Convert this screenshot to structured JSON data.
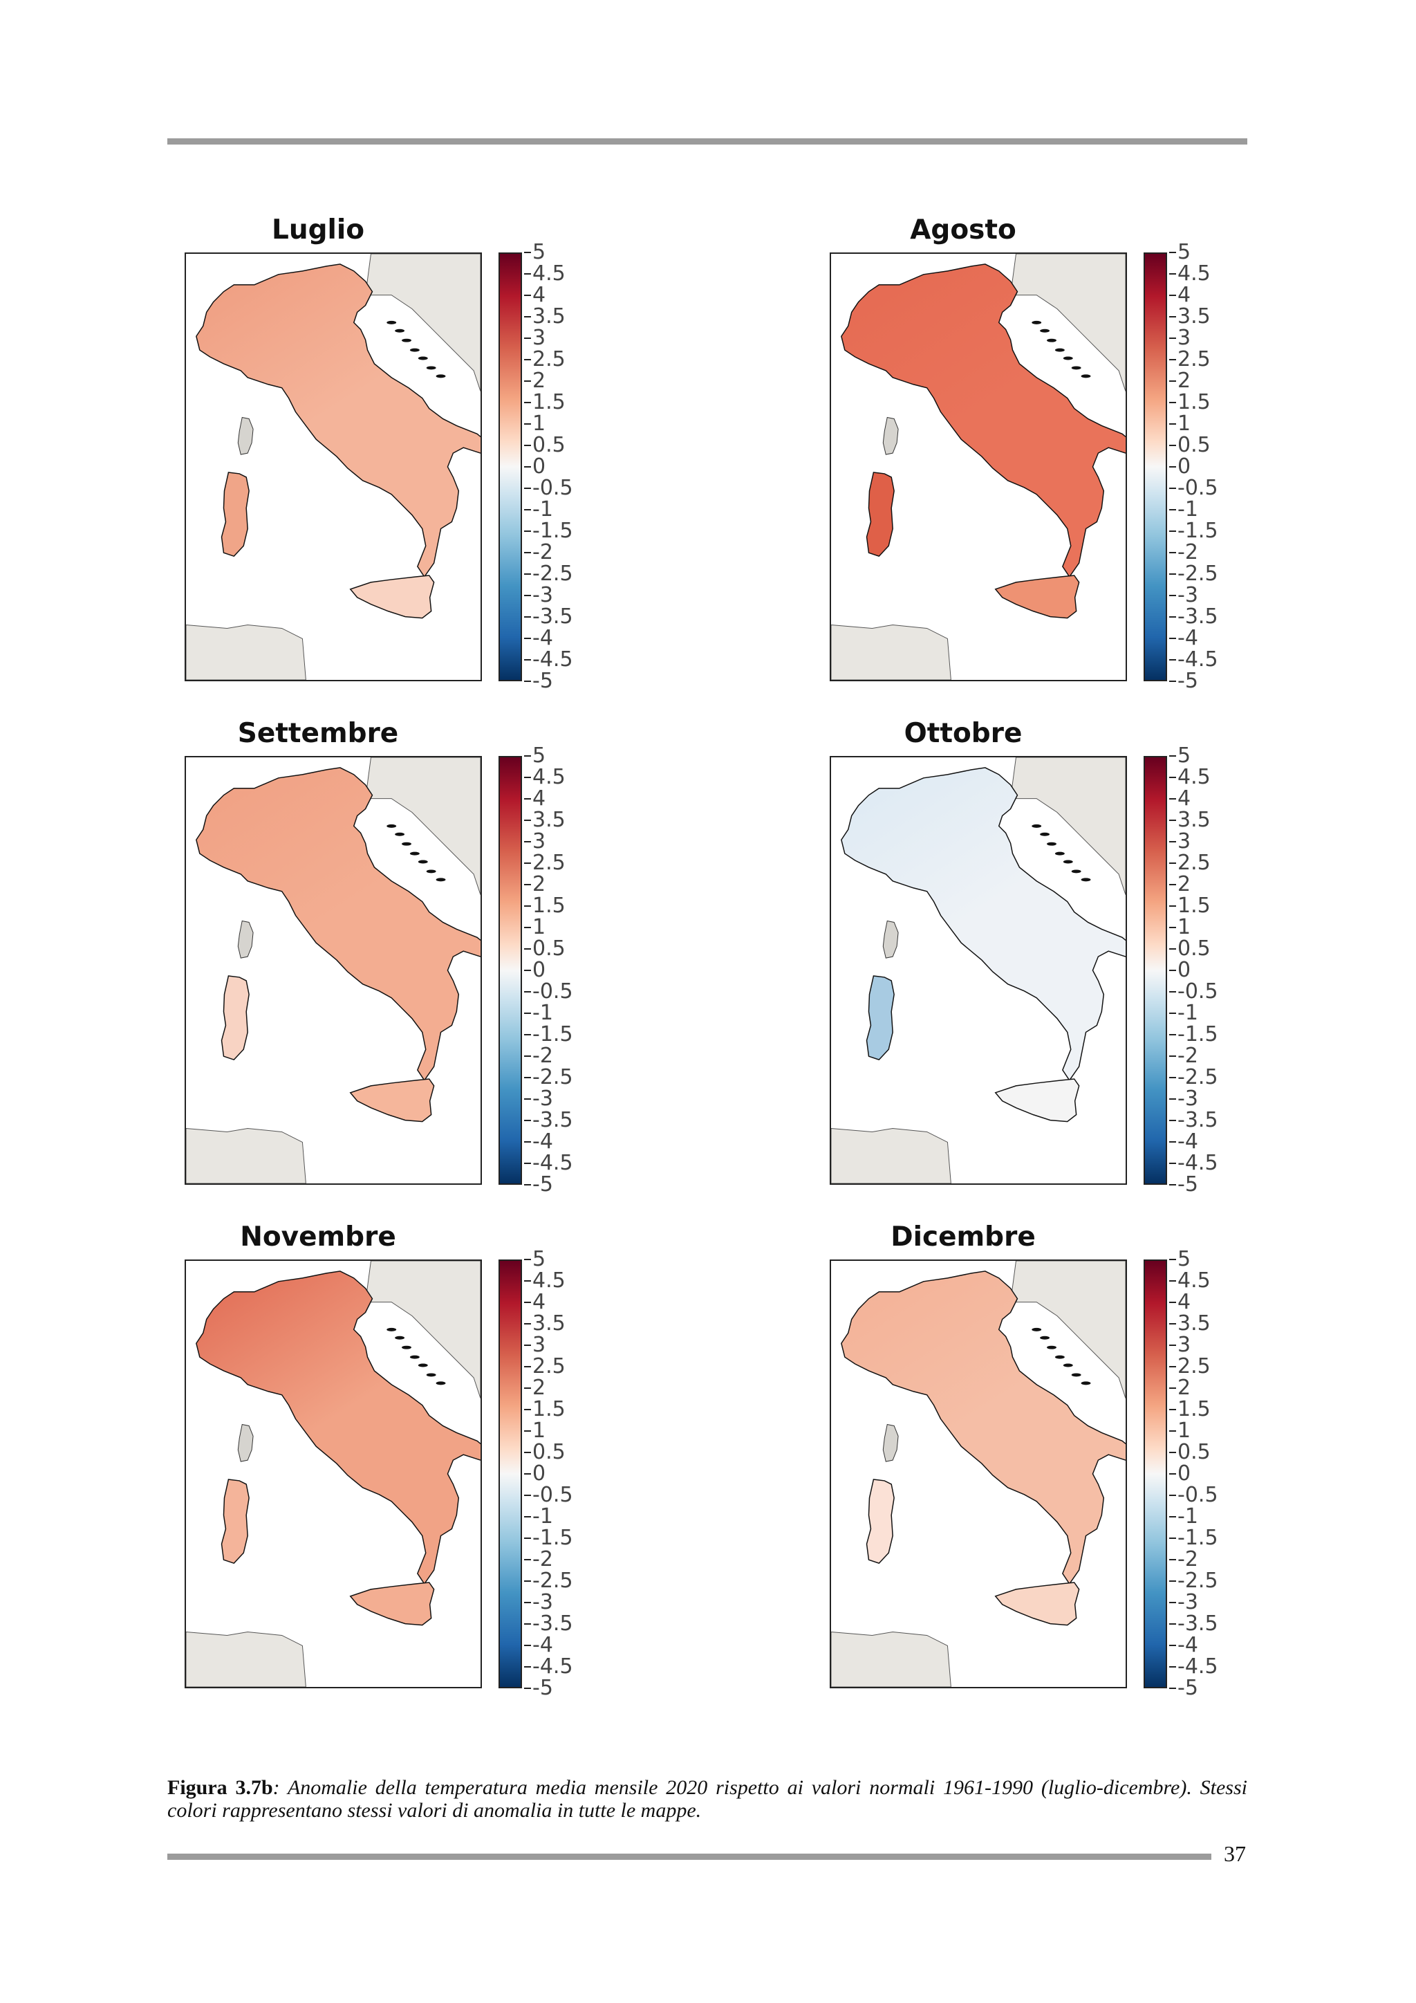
{
  "figure": {
    "panels": [
      {
        "title": "Luglio",
        "fill": "#f4b49a",
        "north": "#ef9c7f",
        "sardinia": "#f0a588",
        "sicily": "#f9d3c2",
        "corsica": "#d6d4cf"
      },
      {
        "title": "Agosto",
        "fill": "#e9735a",
        "north": "#e56a52",
        "sardinia": "#df6048",
        "sicily": "#ee9273",
        "corsica": "#d6d4cf"
      },
      {
        "title": "Settembre",
        "fill": "#f3ad91",
        "north": "#f0a083",
        "sardinia": "#f8d3c3",
        "sicily": "#f5b69b",
        "corsica": "#d6d4cf"
      },
      {
        "title": "Ottobre",
        "fill": "#eef2f6",
        "north": "#dce9f3",
        "sardinia": "#a8cbe2",
        "sicily": "#f4f4f4",
        "corsica": "#d6d4cf"
      },
      {
        "title": "Novembre",
        "fill": "#f1a386",
        "north": "#e06952",
        "sardinia": "#f4b49a",
        "sicily": "#f3ae92",
        "corsica": "#d6d4cf"
      },
      {
        "title": "Dicembre",
        "fill": "#f5bea6",
        "north": "#f3b196",
        "sardinia": "#fbe1d6",
        "sicily": "#f9d6c5",
        "corsica": "#d6d4cf"
      }
    ],
    "colorbar": {
      "ticks": [
        "5",
        "4.5",
        "4",
        "3.5",
        "3",
        "2.5",
        "2",
        "1.5",
        "1",
        "0.5",
        "0",
        "-0.5",
        "-1",
        "-1.5",
        "-2",
        "-2.5",
        "-3",
        "-3.5",
        "-4",
        "-4.5",
        "-5"
      ]
    },
    "caption_label": "Figura 3.7b",
    "caption_text": ": Anomalie della temperatura media mensile 2020 rispetto ai valori normali 1961-1990 (luglio-dicembre). Stessi colori rappresentano stessi valori di anomalia in tutte le mappe."
  },
  "page_number": "37",
  "colors": {
    "land_outside": "#e8e6e1",
    "sea": "#ffffff",
    "coast": "#111111",
    "rule": "#9b9b9b"
  }
}
